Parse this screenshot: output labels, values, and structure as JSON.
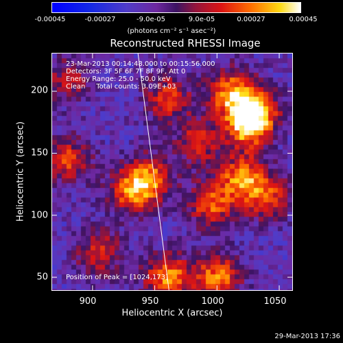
{
  "colorbar": {
    "ticks": [
      "-0.00045",
      "-0.00027",
      "-9.0e-05",
      "9.0e-05",
      "0.00027",
      "0.00045"
    ],
    "units": "(photons cm⁻² s⁻¹ asec⁻²)",
    "range": [
      -0.00045,
      0.00045
    ]
  },
  "chart_data": {
    "type": "heatmap",
    "title": "Reconstructed RHESSI Image",
    "xlabel": "Heliocentric X (arcsec)",
    "ylabel": "Heliocentric Y (arcsec)",
    "xlim": [
      867,
      1061
    ],
    "ylim": [
      39,
      231
    ],
    "xticks": [
      900,
      950,
      1000,
      1050
    ],
    "yticks": [
      50,
      100,
      150,
      200
    ],
    "annotations": [
      "23-Mar-2013 00:14:48.000 to 00:15:56.000",
      "Detectors: 3F 5F 6F 7F 8F 9F, Att 0",
      "Energy Range: 25.0 - 50.0 keV",
      "Clean     Total counts: 3.09E+03"
    ],
    "peak_label": "Position of Peak = [1024,173]",
    "peak": [
      1024,
      173
    ],
    "limb_line": [
      [
        936,
        231
      ],
      [
        961,
        39
      ]
    ],
    "bright_regions": [
      {
        "x": 960,
        "y": 195,
        "v": 0.0003
      },
      {
        "x": 1010,
        "y": 200,
        "v": 0.0004
      },
      {
        "x": 1030,
        "y": 185,
        "v": 0.00038
      },
      {
        "x": 1024,
        "y": 173,
        "v": 0.00045
      },
      {
        "x": 945,
        "y": 130,
        "v": 0.00036
      },
      {
        "x": 930,
        "y": 120,
        "v": 0.00033
      },
      {
        "x": 1020,
        "y": 130,
        "v": 0.0004
      },
      {
        "x": 995,
        "y": 110,
        "v": 0.00035
      },
      {
        "x": 1040,
        "y": 115,
        "v": 0.0003
      },
      {
        "x": 880,
        "y": 145,
        "v": 0.0003
      },
      {
        "x": 905,
        "y": 70,
        "v": 0.00028
      },
      {
        "x": 960,
        "y": 50,
        "v": 0.00042
      },
      {
        "x": 1000,
        "y": 50,
        "v": 0.0004
      },
      {
        "x": 985,
        "y": 160,
        "v": 0.00028
      },
      {
        "x": 880,
        "y": 210,
        "v": 0.00022
      }
    ]
  },
  "timestamp": "29-Mar-2013 17:36"
}
